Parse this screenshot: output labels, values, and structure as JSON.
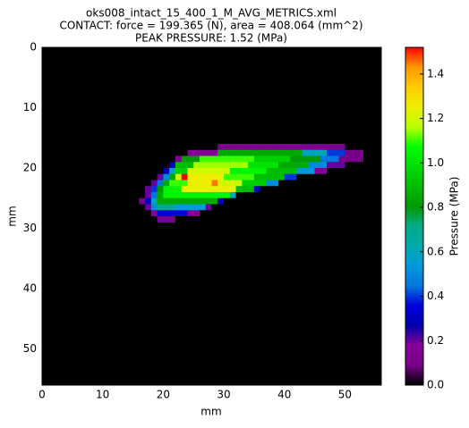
{
  "chart_data": {
    "type": "heatmap",
    "title": "oks008_intact_15_400_1_M_AVG_METRICS.xml",
    "subtitle": "CONTACT: force = 199.365 (N), area = 408.064 (mm^2)",
    "annotation": "PEAK PRESSURE: 1.52 (MPa)",
    "xlabel": "mm",
    "ylabel": "mm",
    "colorbar_label": "Pressure (MPa)",
    "xlim": [
      0,
      56
    ],
    "ylim": [
      56,
      0
    ],
    "xticks": [
      0,
      10,
      20,
      30,
      40,
      50
    ],
    "yticks": [
      0,
      10,
      20,
      30,
      40,
      50
    ],
    "clim": [
      0,
      1.52
    ],
    "cticks": [
      {
        "value": 0,
        "label": "0.0"
      },
      {
        "value": 0.2,
        "label": "0.2"
      },
      {
        "value": 0.4,
        "label": "0.4"
      },
      {
        "value": 0.6,
        "label": "0.6"
      },
      {
        "value": 0.8,
        "label": "0.8"
      },
      {
        "value": 1,
        "label": "1.0"
      },
      {
        "value": 1.2,
        "label": "1.2"
      },
      {
        "value": 1.4,
        "label": "1.4"
      }
    ],
    "x": [
      16,
      17,
      18,
      19,
      20,
      21,
      22,
      23,
      24,
      25,
      26,
      27,
      28,
      29,
      30,
      31,
      32,
      33,
      34,
      35,
      36,
      37,
      38,
      39,
      40,
      41,
      42,
      43,
      44,
      45,
      46,
      47,
      48,
      49,
      50,
      51,
      52
    ],
    "y": [
      16,
      17,
      18,
      19,
      20,
      21,
      22,
      23,
      24,
      25,
      26,
      27,
      28
    ],
    "values": [
      [
        0,
        0,
        0,
        0,
        0,
        0,
        0,
        0,
        0,
        0,
        0,
        0,
        0,
        0.12,
        0.12,
        0.12,
        0.12,
        0.12,
        0.12,
        0.12,
        0.12,
        0.12,
        0.12,
        0.12,
        0.12,
        0.12,
        0.12,
        0.12,
        0.12,
        0.12,
        0.12,
        0.12,
        0.12,
        0.12,
        0,
        0,
        0
      ],
      [
        0,
        0,
        0,
        0,
        0,
        0,
        0,
        0,
        0.15,
        0.15,
        0.15,
        0.15,
        0.15,
        0.85,
        0.85,
        0.85,
        0.85,
        0.85,
        0.85,
        0.85,
        0.85,
        0.85,
        0.85,
        0.85,
        0.85,
        0.85,
        0.85,
        0.6,
        0.6,
        0.6,
        0.6,
        0.4,
        0.4,
        0.4,
        0.1,
        0.1,
        0.1
      ],
      [
        0,
        0,
        0,
        0,
        0,
        0,
        0.15,
        0.8,
        0.8,
        0.8,
        1.1,
        1.1,
        1.1,
        1.1,
        1.1,
        1.1,
        1.1,
        1.1,
        1.1,
        0.95,
        0.95,
        0.95,
        0.95,
        0.95,
        0.95,
        0.8,
        0.8,
        0.8,
        0.8,
        0.8,
        0.45,
        0.45,
        0.45,
        0.1,
        0.1,
        0.1,
        0.1
      ],
      [
        0,
        0,
        0,
        0,
        0,
        0.3,
        0.9,
        0.9,
        0.9,
        1.15,
        1.15,
        1.15,
        1.15,
        1.15,
        1.15,
        1.15,
        1.15,
        1.15,
        1,
        1,
        1,
        1,
        1,
        0.85,
        0.85,
        0.85,
        0.85,
        0.85,
        0.5,
        0.5,
        0.5,
        0.2,
        0.2,
        0.2,
        0,
        0,
        0
      ],
      [
        0,
        0,
        0,
        0,
        0.3,
        0.6,
        0.95,
        0.95,
        1.2,
        1.2,
        1.2,
        1.2,
        1.2,
        1.2,
        1.2,
        1.05,
        1.05,
        1.05,
        1.05,
        1.05,
        1.05,
        0.9,
        0.9,
        0.9,
        0.9,
        0.9,
        0.55,
        0.55,
        0.55,
        0.15,
        0.15,
        0,
        0,
        0,
        0,
        0,
        0
      ],
      [
        0,
        0,
        0,
        0.2,
        0.5,
        0.85,
        1.2,
        1.52,
        1.25,
        1.25,
        1.25,
        1.25,
        1.25,
        1.25,
        1.1,
        1.1,
        1.1,
        1.1,
        1.1,
        0.9,
        0.9,
        0.9,
        0.9,
        0.9,
        0.4,
        0.4,
        0,
        0,
        0,
        0,
        0,
        0,
        0,
        0,
        0,
        0,
        0
      ],
      [
        0,
        0,
        0.2,
        0.45,
        0.85,
        1.1,
        1.1,
        1.1,
        1.25,
        1.25,
        1.25,
        1.25,
        1.45,
        1.2,
        1.2,
        1.2,
        1.2,
        0.95,
        0.95,
        0.95,
        0.95,
        0.5,
        0.5,
        0,
        0,
        0,
        0,
        0,
        0,
        0,
        0,
        0,
        0,
        0,
        0,
        0,
        0
      ],
      [
        0,
        0.2,
        0.4,
        0.8,
        1.05,
        1.05,
        1.05,
        1.25,
        1.25,
        1.25,
        1.25,
        1.25,
        1.25,
        1.25,
        1.25,
        1.25,
        0.9,
        0.9,
        0.9,
        0.3,
        0,
        0,
        0,
        0,
        0,
        0,
        0,
        0,
        0,
        0,
        0,
        0,
        0,
        0,
        0,
        0,
        0
      ],
      [
        0,
        0.2,
        0.45,
        0.85,
        1.05,
        1.05,
        1.05,
        1.05,
        1.05,
        1.05,
        1.05,
        1.05,
        1.05,
        1.05,
        1.05,
        0.6,
        0,
        0,
        0,
        0,
        0,
        0,
        0,
        0,
        0,
        0,
        0,
        0,
        0,
        0,
        0,
        0,
        0,
        0,
        0,
        0,
        0
      ],
      [
        0.1,
        0.3,
        0.6,
        0.85,
        0.85,
        0.85,
        0.85,
        0.85,
        0.85,
        0.85,
        0.85,
        0.85,
        0.85,
        0.3,
        0,
        0,
        0,
        0,
        0,
        0,
        0,
        0,
        0,
        0,
        0,
        0,
        0,
        0,
        0,
        0,
        0,
        0,
        0,
        0,
        0,
        0,
        0
      ],
      [
        0,
        0.2,
        0.5,
        0.7,
        0.7,
        0.7,
        0.55,
        0.55,
        0.55,
        0.55,
        0.55,
        0.2,
        0,
        0,
        0,
        0,
        0,
        0,
        0,
        0,
        0,
        0,
        0,
        0,
        0,
        0,
        0,
        0,
        0,
        0,
        0,
        0,
        0,
        0,
        0,
        0,
        0
      ],
      [
        0,
        0,
        0.15,
        0.35,
        0.35,
        0.35,
        0.35,
        0.35,
        0.15,
        0.15,
        0,
        0,
        0,
        0,
        0,
        0,
        0,
        0,
        0,
        0,
        0,
        0,
        0,
        0,
        0,
        0,
        0,
        0,
        0,
        0,
        0,
        0,
        0,
        0,
        0,
        0,
        0
      ],
      [
        0,
        0,
        0,
        0.1,
        0.1,
        0.1,
        0,
        0,
        0,
        0,
        0,
        0,
        0,
        0,
        0,
        0,
        0,
        0,
        0,
        0,
        0,
        0,
        0,
        0,
        0,
        0,
        0,
        0,
        0,
        0,
        0,
        0,
        0,
        0,
        0,
        0,
        0
      ]
    ]
  }
}
